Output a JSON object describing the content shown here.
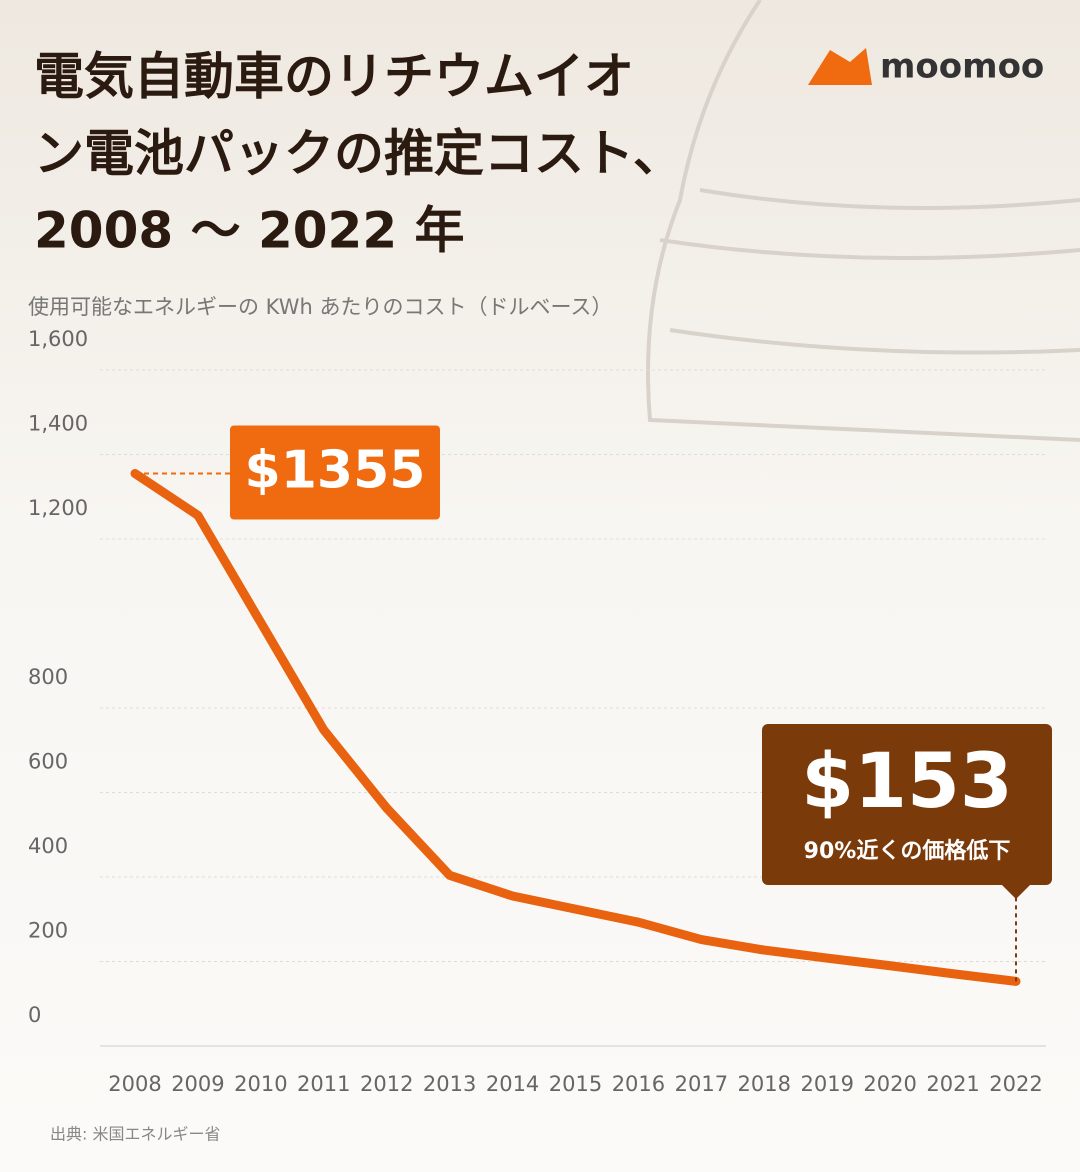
{
  "chart_data": {
    "type": "line",
    "title": [
      "電気自動車のリチウムイオ",
      "ン電池パックの推定コスト、",
      "2008 ～ 2022 年"
    ],
    "subtitle": "使用可能なエネルギーの KWh あたりのコスト（ドルベース）",
    "brand": "moomoo",
    "source": "出典: 米国エネルギー省",
    "categories": [
      "2008",
      "2009",
      "2010",
      "2011",
      "2012",
      "2013",
      "2014",
      "2015",
      "2016",
      "2017",
      "2018",
      "2019",
      "2020",
      "2021",
      "2022"
    ],
    "series": [
      {
        "name": "コスト",
        "color": "#e8620f",
        "values": [
          1355,
          1256,
          1002,
          748,
          563,
          404,
          355,
          324,
          293,
          252,
          227,
          208,
          190,
          171,
          153
        ]
      }
    ],
    "ylim": [
      0,
      1600
    ],
    "yticks": [
      0,
      200,
      400,
      600,
      800,
      {
        "value": 1200,
        "label": "1,200"
      },
      {
        "value": 1400,
        "label": "1,400"
      },
      {
        "value": 1600,
        "label": "1,600"
      }
    ],
    "grid": true,
    "annotations": [
      {
        "text": "$1355",
        "index": 0,
        "color": "#f06a0f"
      },
      {
        "text": "$153",
        "note": "90%近くの価格低下",
        "index": 14,
        "color": "#7a3a0a"
      }
    ]
  }
}
